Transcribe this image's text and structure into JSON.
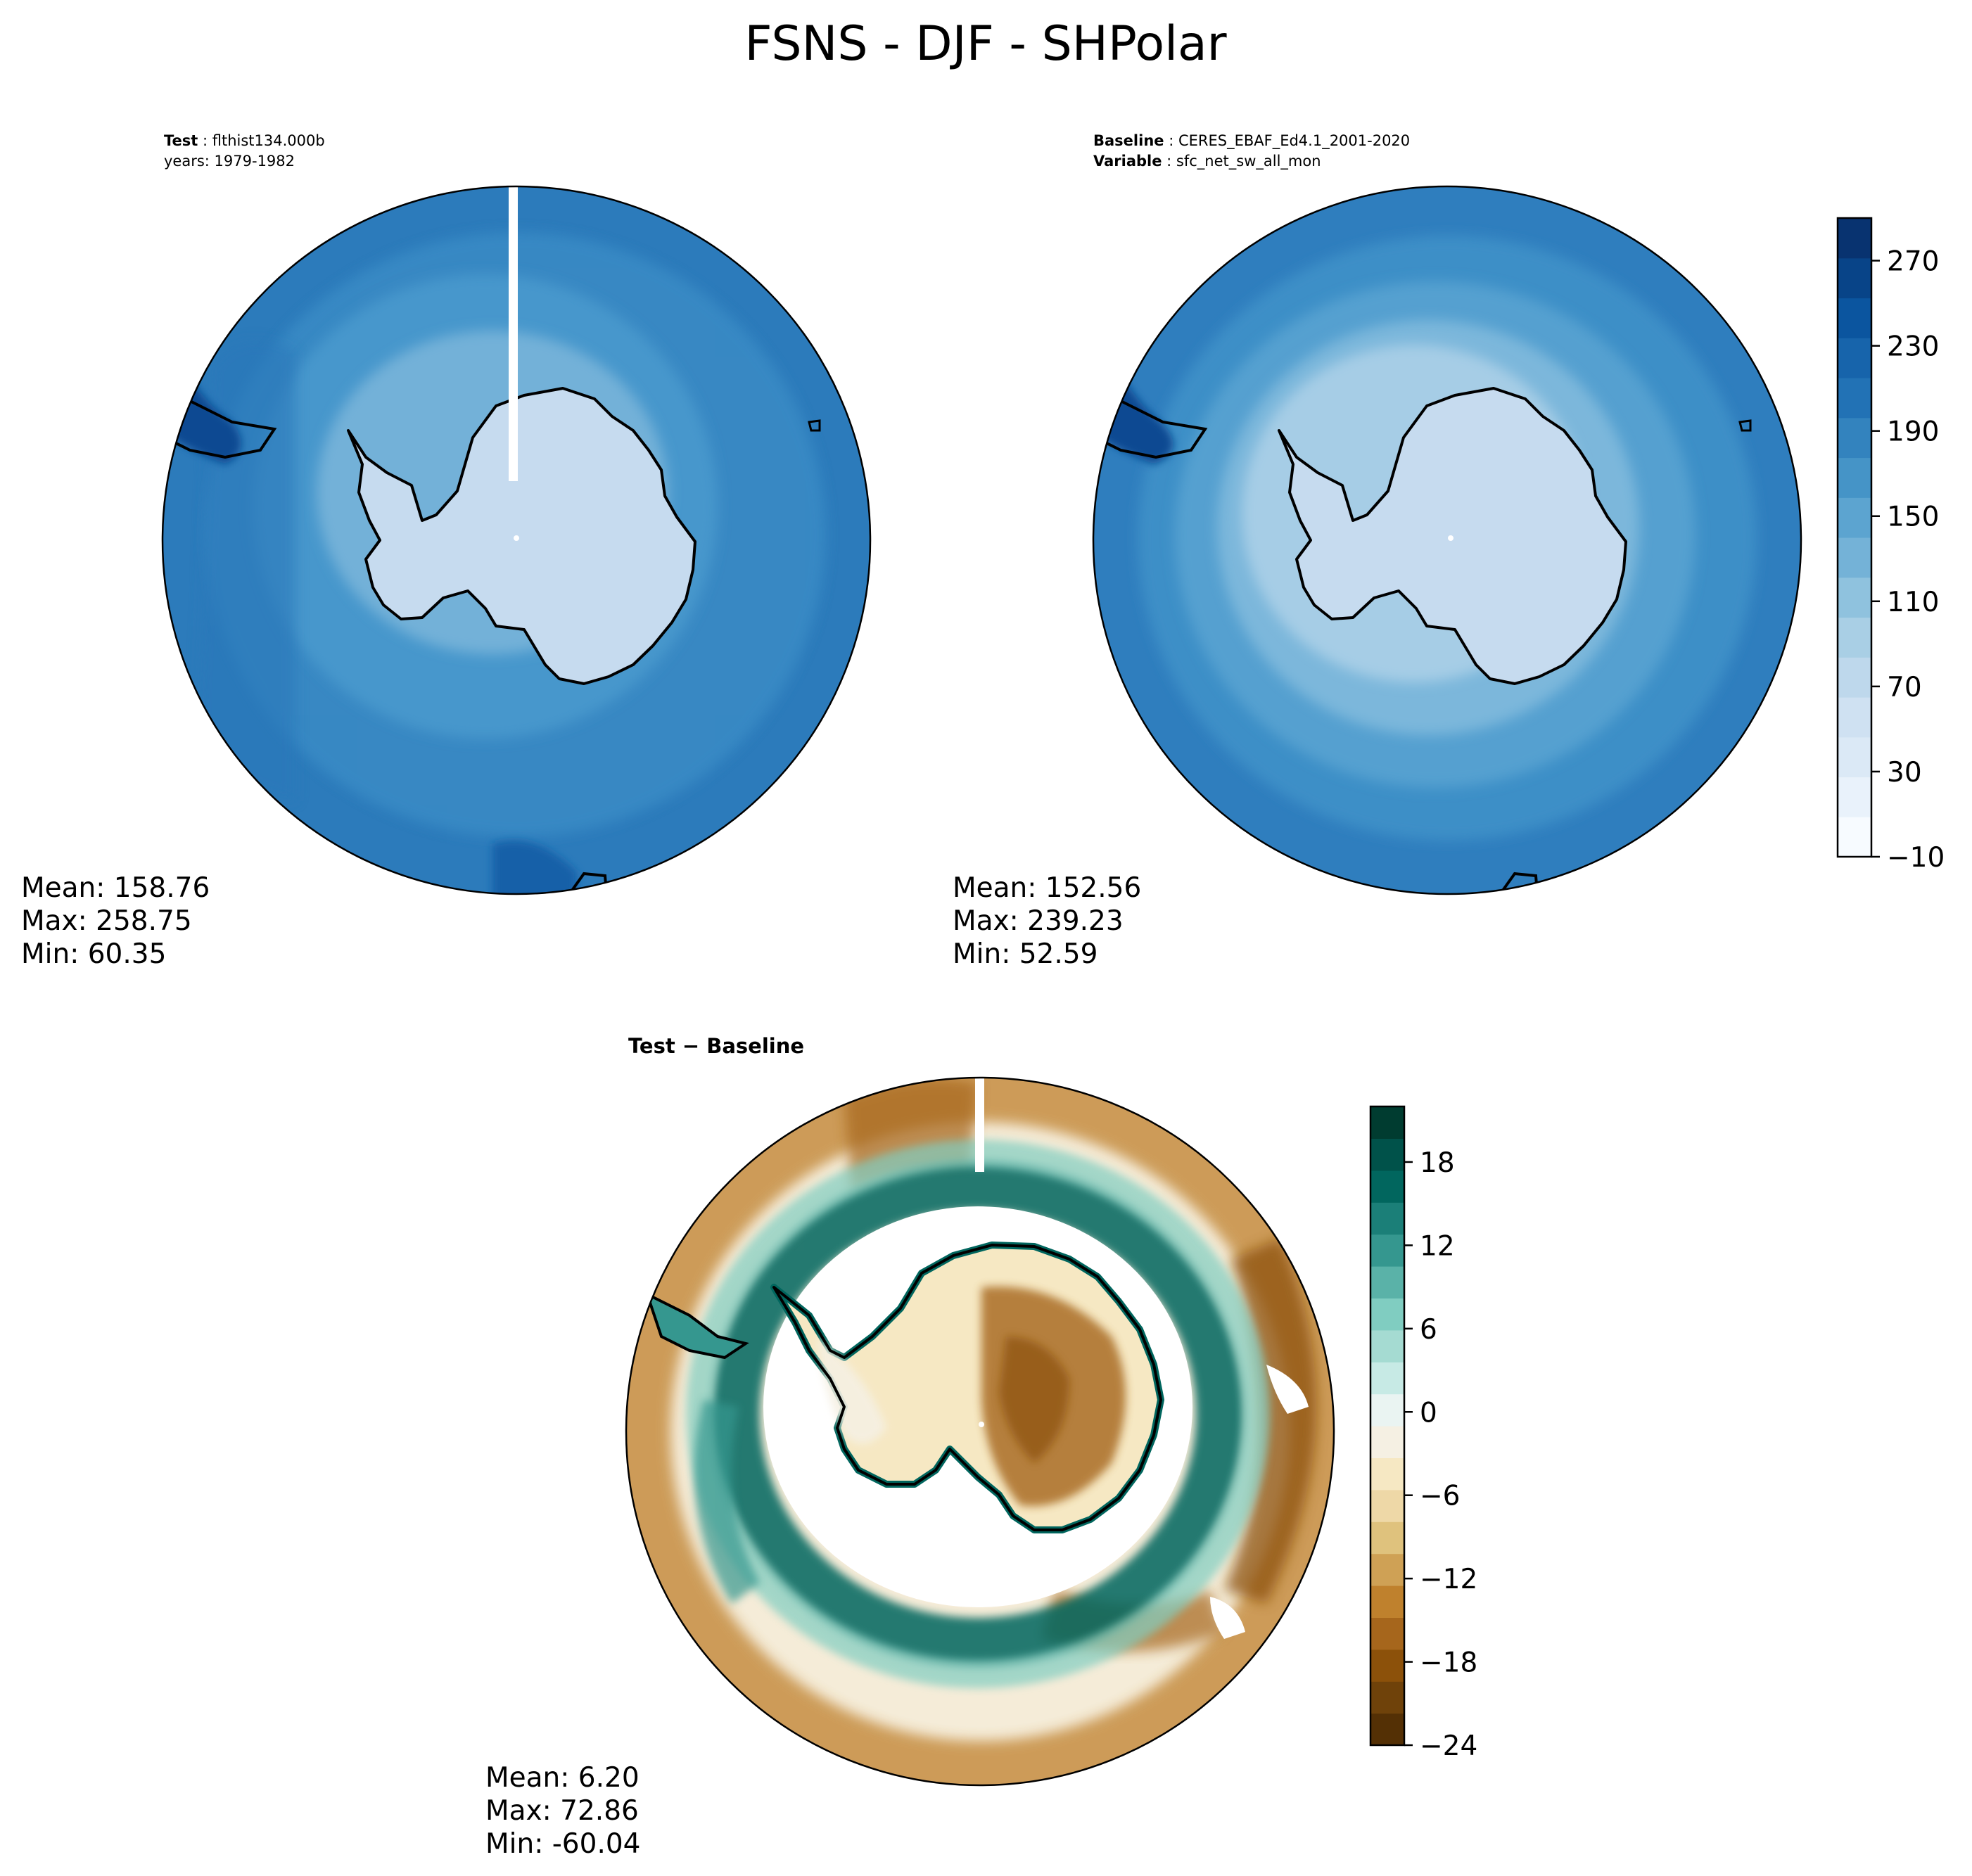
{
  "figure": {
    "title": "FSNS - DJF - SHPolar"
  },
  "panels": {
    "test": {
      "header_key": "Test",
      "header_value": "flthist134.000b",
      "header_line2": "years: 1979-1982",
      "mean": "Mean: 158.76",
      "max": "Max: 258.75",
      "min": "Min: 60.35"
    },
    "baseline": {
      "header_key": "Baseline",
      "header_value": "CERES_EBAF_Ed4.1_2001-2020",
      "header_key2": "Variable",
      "header_value2": "sfc_net_sw_all_mon",
      "mean": "Mean: 152.56",
      "max": "Max: 239.23",
      "min": "Min: 52.59"
    },
    "diff": {
      "title": "Test − Baseline",
      "mean": "Mean:  6.20",
      "max": "Max: 72.86",
      "min": "Min: -60.04"
    }
  },
  "chart_data": [
    {
      "type": "heatmap",
      "title": "Test: flthist134.000b (years: 1979-1982)",
      "projection": "south polar stereographic",
      "stats": {
        "mean": 158.76,
        "max": 258.75,
        "min": 60.35
      }
    },
    {
      "type": "heatmap",
      "title": "Baseline: CERES_EBAF_Ed4.1_2001-2020, Variable: sfc_net_sw_all_mon",
      "projection": "south polar stereographic",
      "stats": {
        "mean": 152.56,
        "max": 239.23,
        "min": 52.59
      },
      "colorbar": {
        "range": [
          -10,
          290
        ],
        "ticks": [
          -10,
          30,
          70,
          110,
          150,
          190,
          230,
          270
        ],
        "tick_labels": [
          "−10",
          "30",
          "70",
          "110",
          "150",
          "190",
          "230",
          "270"
        ],
        "colors": [
          "#f7fbff",
          "#e9f2fb",
          "#dbe9f6",
          "#cfe1f2",
          "#bed8ec",
          "#a9cfe5",
          "#8fc2de",
          "#74b2d7",
          "#5ca4d0",
          "#4594c7",
          "#3383be",
          "#2272b5",
          "#1764ab",
          "#0b559f",
          "#084488",
          "#083370"
        ]
      }
    },
    {
      "type": "heatmap",
      "title": "Test − Baseline",
      "projection": "south polar stereographic",
      "stats": {
        "mean": 6.2,
        "max": 72.86,
        "min": -60.04
      },
      "colorbar": {
        "range": [
          -24,
          22
        ],
        "ticks": [
          -24,
          -18,
          -12,
          -6,
          0,
          6,
          12,
          18
        ],
        "tick_labels": [
          "−24",
          "−18",
          "−12",
          "−6",
          "0",
          "6",
          "12",
          "18"
        ],
        "colors": [
          "#543005",
          "#6f420a",
          "#8c510a",
          "#a6661c",
          "#bf812d",
          "#cfa155",
          "#dfc27d",
          "#eed8a7",
          "#f6e8c3",
          "#f5f0e3",
          "#eaf4f2",
          "#c7eae5",
          "#a5dbd2",
          "#80cdc1",
          "#5ab2a8",
          "#35978f",
          "#1b7f78",
          "#01665e",
          "#00524a",
          "#003c30"
        ]
      }
    }
  ]
}
